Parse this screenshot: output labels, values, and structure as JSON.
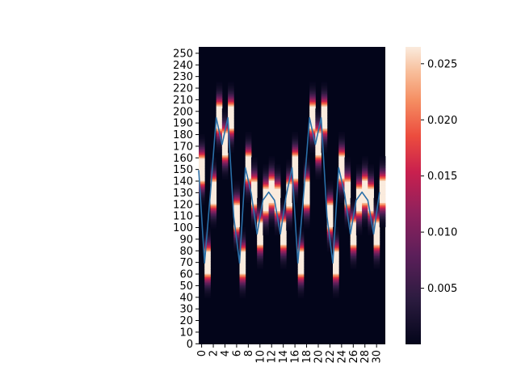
{
  "chart_data": {
    "type": "heatmap",
    "title": "",
    "xlabel": "",
    "ylabel": "",
    "columns": 32,
    "rows": 256,
    "x_tick_labels": [
      "0",
      "2",
      "4",
      "6",
      "8",
      "10",
      "12",
      "14",
      "16",
      "18",
      "20",
      "22",
      "24",
      "26",
      "28",
      "30"
    ],
    "y_tick_labels": [
      "0",
      "10",
      "20",
      "30",
      "40",
      "50",
      "60",
      "70",
      "80",
      "90",
      "100",
      "110",
      "120",
      "130",
      "140",
      "150",
      "160",
      "170",
      "180",
      "190",
      "200",
      "210",
      "220",
      "230",
      "240",
      "250"
    ],
    "y_axis_direction": "bottom-to-top",
    "colormap": "rocket",
    "colorbar": {
      "min": 0.0,
      "max": 0.0265,
      "tick_values": [
        0.005,
        0.01,
        0.015,
        0.02,
        0.025
      ],
      "tick_labels": [
        "0.005",
        "0.010",
        "0.015",
        "0.020",
        "0.025"
      ]
    },
    "gaussian_sigma": 10,
    "line_series": {
      "color": "#2a6fa8",
      "x": [
        0,
        1,
        2,
        3,
        4,
        5,
        6,
        7,
        8,
        9,
        10,
        11,
        12,
        13,
        14,
        15,
        16,
        17,
        18,
        19,
        20,
        21,
        22,
        23,
        24,
        25,
        26,
        27,
        28,
        29,
        30,
        31
      ],
      "values": [
        150,
        70,
        130,
        195,
        172,
        195,
        110,
        70,
        152,
        130,
        95,
        124,
        131,
        124,
        95,
        128,
        152,
        70,
        130,
        195,
        172,
        195,
        110,
        70,
        152,
        130,
        95,
        124,
        131,
        124,
        95,
        131
      ]
    }
  }
}
